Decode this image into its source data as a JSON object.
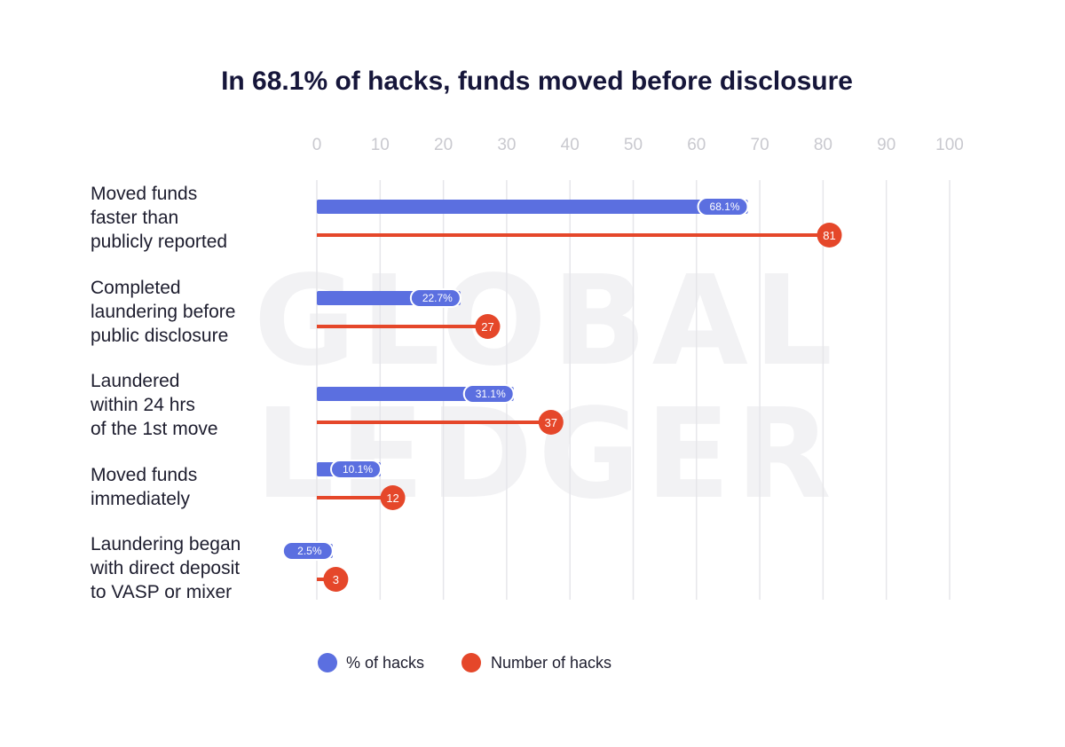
{
  "chart_data": {
    "type": "bar",
    "title": "In 68.1% of hacks, funds moved before disclosure",
    "xlim": [
      0,
      100
    ],
    "x_ticks": [
      "0",
      "10",
      "20",
      "30",
      "40",
      "50",
      "60",
      "70",
      "80",
      "90",
      "100"
    ],
    "grid": true,
    "legend_position": "bottom",
    "categories": [
      [
        "Moved funds",
        "faster than",
        "publicly reported"
      ],
      [
        "Completed",
        "laundering before",
        "public disclosure"
      ],
      [
        "Laundered",
        "within 24 hrs",
        "of the 1st move"
      ],
      [
        "Moved funds",
        "immediately"
      ],
      [
        "Laundering began",
        "with direct deposit",
        "to VASP or mixer"
      ]
    ],
    "series": [
      {
        "name": "% of hacks",
        "color": "#5b6fe0",
        "values": [
          68.1,
          22.7,
          31.1,
          10.1,
          2.5
        ],
        "labels": [
          "68.1%",
          "22.7%",
          "31.1%",
          "10.1%",
          "2.5%"
        ]
      },
      {
        "name": "Number of hacks",
        "color": "#e5472a",
        "values": [
          81,
          27,
          37,
          12,
          3
        ],
        "labels": [
          "81",
          "27",
          "37",
          "12",
          "3"
        ]
      }
    ],
    "watermark": [
      "GLOBAL",
      "LEDGER"
    ]
  }
}
